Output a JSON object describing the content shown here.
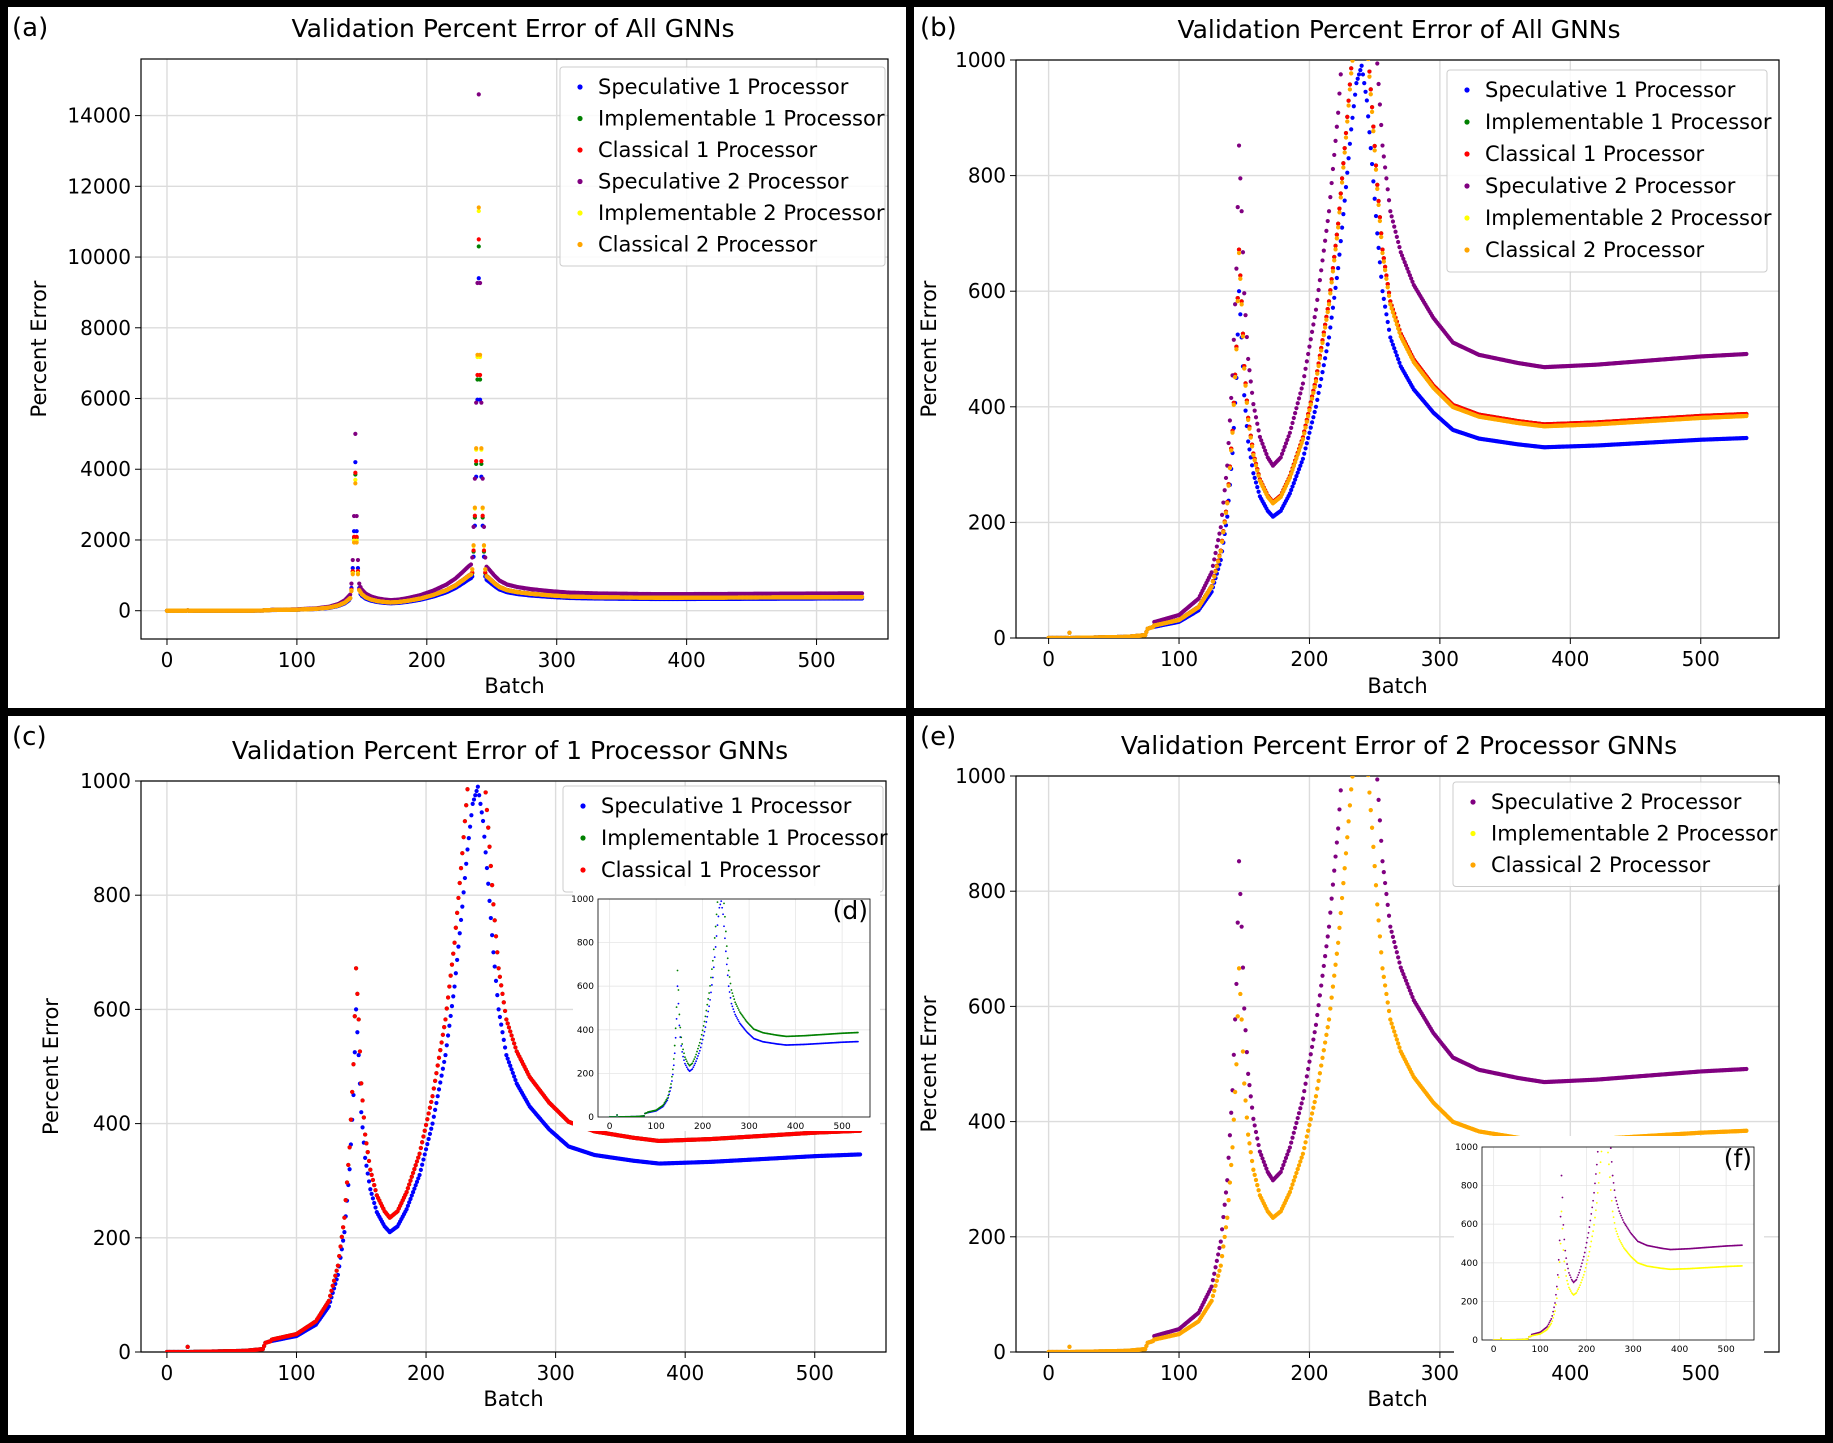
{
  "panels": [
    {
      "id": "a",
      "tag": "(a)",
      "title": "Validation Percent Error of All GNNs",
      "chart_data": {
        "type": "scatter",
        "title": "Validation Percent Error of All GNNs",
        "xlabel": "Batch",
        "ylabel": "Percent Error",
        "xlim": [
          -20,
          555
        ],
        "ylim": [
          -800,
          15600
        ],
        "xticks": [
          0,
          100,
          200,
          300,
          400,
          500
        ],
        "yticks": [
          0,
          2000,
          4000,
          6000,
          8000,
          10000,
          12000,
          14000
        ],
        "grid": true,
        "legend": "top-right",
        "series": [
          "spec1",
          "impl1",
          "class1",
          "spec2",
          "impl2",
          "class2"
        ]
      }
    },
    {
      "id": "b",
      "tag": "(b)",
      "title": "Validation Percent Error of All GNNs",
      "chart_data": {
        "type": "scatter",
        "title": "Validation Percent Error of All GNNs",
        "xlabel": "Batch",
        "ylabel": "Percent Error",
        "xlim": [
          -25,
          560
        ],
        "ylim": [
          0,
          1000
        ],
        "xticks": [
          0,
          100,
          200,
          300,
          400,
          500
        ],
        "yticks": [
          0,
          200,
          400,
          600,
          800,
          1000
        ],
        "grid": true,
        "legend": "top-right",
        "series": [
          "spec1",
          "impl1",
          "class1",
          "spec2",
          "impl2",
          "class2"
        ]
      }
    },
    {
      "id": "c",
      "tag": "(c)",
      "title": "Validation Percent Error of 1 Processor GNNs",
      "chart_data": {
        "type": "scatter",
        "title": "Validation Percent Error of 1 Processor GNNs",
        "xlabel": "Batch",
        "ylabel": "Percent Error",
        "xlim": [
          -20,
          555
        ],
        "ylim": [
          0,
          1000
        ],
        "xticks": [
          0,
          100,
          200,
          300,
          400,
          500
        ],
        "yticks": [
          0,
          200,
          400,
          600,
          800,
          1000
        ],
        "grid": true,
        "legend": "top-right",
        "series": [
          "spec1",
          "impl1",
          "class1"
        ]
      },
      "inset": {
        "tag": "(d)",
        "chart_data": {
          "type": "scatter",
          "xlim": [
            -25,
            560
          ],
          "ylim": [
            0,
            1000
          ],
          "xticks": [
            0,
            100,
            200,
            300,
            400,
            500
          ],
          "yticks": [
            0,
            200,
            400,
            600,
            800,
            1000
          ],
          "series": [
            "spec1",
            "impl1"
          ]
        }
      }
    },
    {
      "id": "e",
      "tag": "(e)",
      "title": "Validation Percent Error of 2 Processor GNNs",
      "chart_data": {
        "type": "scatter",
        "title": "Validation Percent Error of 2 Processor GNNs",
        "xlabel": "Batch",
        "ylabel": "Percent Error",
        "xlim": [
          -25,
          560
        ],
        "ylim": [
          0,
          1000
        ],
        "xticks": [
          0,
          100,
          200,
          300,
          400,
          500
        ],
        "yticks": [
          0,
          200,
          400,
          600,
          800,
          1000
        ],
        "grid": true,
        "legend": "top-right",
        "series": [
          "spec2",
          "impl2",
          "class2"
        ]
      },
      "inset": {
        "tag": "(f)",
        "chart_data": {
          "type": "scatter",
          "xlim": [
            -25,
            560
          ],
          "ylim": [
            0,
            1000
          ],
          "xticks": [
            0,
            100,
            200,
            300,
            400,
            500
          ],
          "yticks": [
            0,
            200,
            400,
            600,
            800,
            1000
          ],
          "series": [
            "spec2",
            "impl2"
          ]
        }
      }
    }
  ],
  "series_defs": {
    "spec1": {
      "name": "Speculative 1 Processor",
      "color": "#0000ff",
      "base": 1.0,
      "spikes": [
        [
          145,
          4200,
          1.6
        ],
        [
          240,
          9400,
          2.2
        ]
      ]
    },
    "impl1": {
      "name": "Implementable 1 Processor",
      "color": "#008000",
      "base": 1.12,
      "spikes": [
        [
          145,
          3850,
          1.6
        ],
        [
          240,
          10300,
          2.2
        ]
      ]
    },
    "class1": {
      "name": "Classical 1 Processor",
      "color": "#ff0000",
      "base": 1.12,
      "spikes": [
        [
          145,
          3900,
          1.6
        ],
        [
          240,
          10500,
          2.2
        ]
      ]
    },
    "spec2": {
      "name": "Speculative 2 Processor",
      "color": "#800080",
      "base": 1.42,
      "spikes": [
        [
          145,
          5000,
          1.6
        ],
        [
          240,
          14600,
          2.2
        ]
      ]
    },
    "impl2": {
      "name": "Implementable 2 Processor",
      "color": "#ffff00",
      "base": 1.11,
      "spikes": [
        [
          145,
          3700,
          1.6
        ],
        [
          240,
          11300,
          2.2
        ]
      ]
    },
    "class2": {
      "name": "Classical 2 Processor",
      "color": "#ffa500",
      "base": 1.11,
      "spikes": [
        [
          145,
          3600,
          1.6
        ],
        [
          240,
          11400,
          2.2
        ]
      ]
    }
  },
  "base_curve": {
    "x": [
      0,
      15,
      16,
      17,
      60,
      74,
      76,
      80,
      100,
      115,
      125,
      132,
      137,
      141,
      144,
      146,
      148,
      150,
      153,
      157,
      162,
      168,
      172,
      178,
      185,
      195,
      205,
      215,
      222,
      228,
      232,
      236,
      240,
      244,
      248,
      252,
      256,
      262,
      270,
      280,
      295,
      310,
      330,
      360,
      380,
      420,
      460,
      500,
      535
    ],
    "y": [
      0,
      0,
      9,
      0,
      2,
      5,
      16,
      19,
      28,
      48,
      80,
      135,
      210,
      320,
      450,
      600,
      520,
      420,
      340,
      285,
      245,
      220,
      210,
      220,
      250,
      310,
      400,
      520,
      640,
      780,
      880,
      960,
      990,
      930,
      820,
      700,
      600,
      520,
      470,
      430,
      390,
      360,
      345,
      335,
      330,
      333,
      338,
      343,
      346
    ]
  }
}
